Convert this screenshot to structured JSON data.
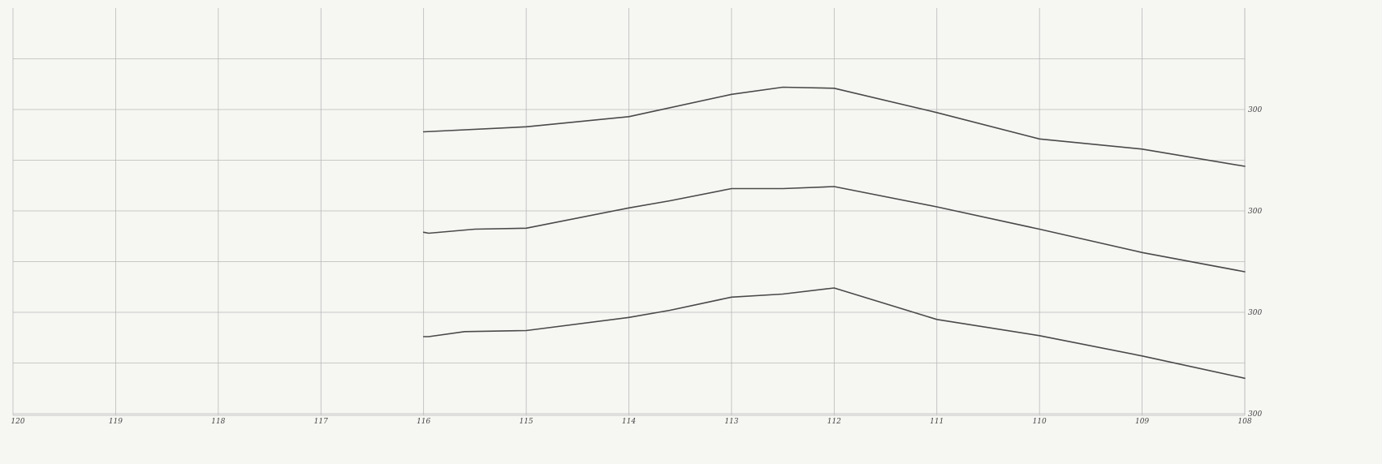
{
  "chart_data": {
    "type": "line",
    "title": "",
    "xlabel": "",
    "ylabel": "",
    "x_reversed": true,
    "xlim": [
      120,
      108
    ],
    "ylim": [
      -3.4,
      0.5
    ],
    "x_ticks": [
      120,
      119,
      118,
      117,
      116,
      115,
      114,
      113,
      112,
      111,
      110,
      109,
      108
    ],
    "x_tick_labels": [
      "120",
      "119",
      "118",
      "117",
      "116",
      "115",
      "114",
      "113",
      "112",
      "111",
      "110",
      "109",
      "108"
    ],
    "y_ticks": [
      0,
      -1,
      -2,
      -3
    ],
    "y_tick_labels": [
      "300",
      "300",
      "300",
      "300"
    ],
    "grid": true,
    "footer_texts": [],
    "series": [
      {
        "x": [
          116,
          115,
          114,
          113,
          112.5,
          112,
          111,
          110,
          109,
          108
        ],
        "y": [
          -0.22,
          -0.17,
          -0.07,
          0.15,
          0.22,
          0.21,
          -0.03,
          -0.29,
          -0.39,
          -0.56
        ]
      },
      {
        "x": [
          116,
          115.95,
          115.5,
          115,
          114,
          113.6,
          113,
          112.5,
          112,
          111,
          110,
          109,
          108
        ],
        "y": [
          -1.21,
          -1.22,
          -1.18,
          -1.17,
          -0.97,
          -0.9,
          -0.78,
          -0.78,
          -0.76,
          -0.96,
          -1.18,
          -1.41,
          -1.6
        ]
      },
      {
        "x": [
          116,
          115.95,
          115.6,
          115,
          114,
          113.6,
          113,
          112.5,
          112,
          111,
          110,
          109,
          108
        ],
        "y": [
          -2.24,
          -2.24,
          -2.19,
          -2.18,
          -2.05,
          -1.98,
          -1.85,
          -1.82,
          -1.76,
          -2.07,
          -2.23,
          -2.43,
          -2.65
        ]
      }
    ]
  }
}
